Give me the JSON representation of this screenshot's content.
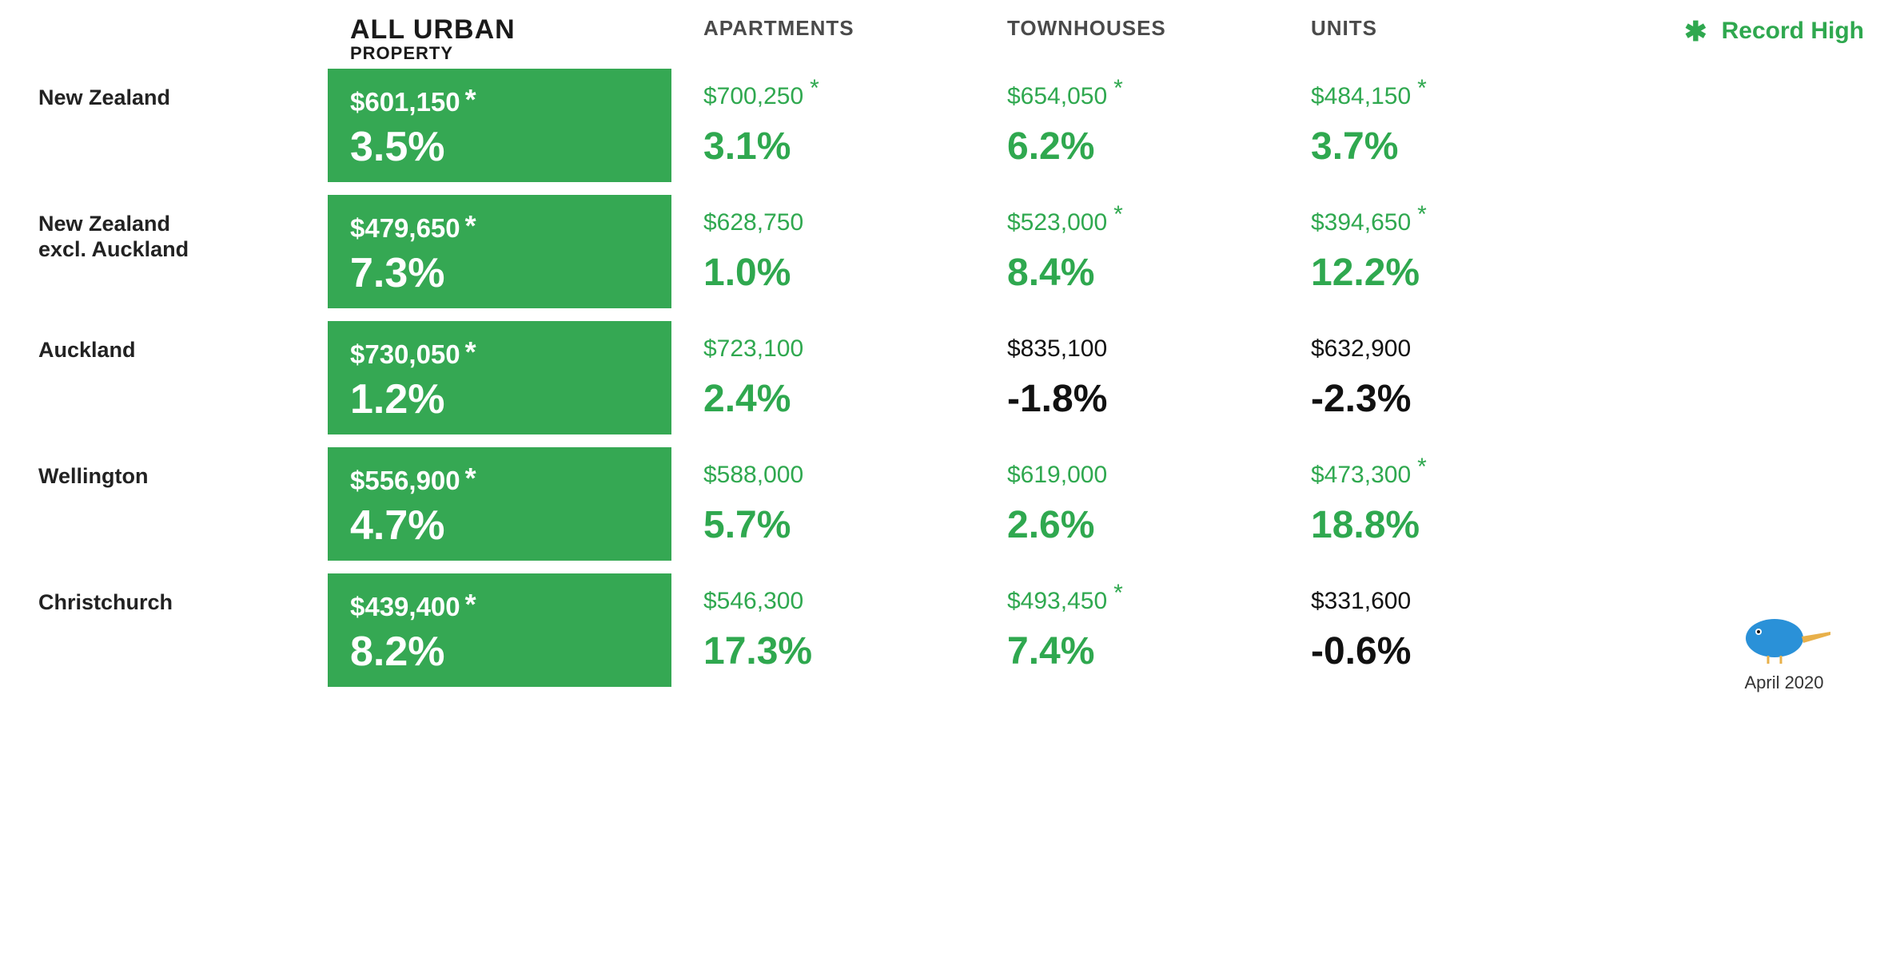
{
  "type": "table-infographic",
  "background_color": "#ffffff",
  "highlight_box_color": "#35a853",
  "positive_color": "#2fa84f",
  "negative_color": "#111111",
  "label_color": "#222222",
  "header_color": "#4a4a4a",
  "price_fontsize": 30,
  "pct_fontsize": 48,
  "box_price_fontsize": 33,
  "box_pct_fontsize": 52,
  "columns": {
    "main_title": "ALL URBAN",
    "main_subtitle": "PROPERTY",
    "c1": "APARTMENTS",
    "c2": "TOWNHOUSES",
    "c3": "UNITS"
  },
  "legend_label": "Record High",
  "legend_star": "✱",
  "footer_label": "April 2020",
  "regions": [
    {
      "label": "New Zealand",
      "main": {
        "price": "$601,150",
        "star": true,
        "pct": "3.5%"
      },
      "cols": [
        {
          "price": "$700,250",
          "star": true,
          "pct": "3.1%",
          "price_class": "green",
          "pct_class": "green"
        },
        {
          "price": "$654,050",
          "star": true,
          "pct": "6.2%",
          "price_class": "green",
          "pct_class": "green"
        },
        {
          "price": "$484,150",
          "star": true,
          "pct": "3.7%",
          "price_class": "green",
          "pct_class": "green"
        }
      ]
    },
    {
      "label": "New Zealand\nexcl. Auckland",
      "main": {
        "price": "$479,650",
        "star": true,
        "pct": "7.3%"
      },
      "cols": [
        {
          "price": "$628,750",
          "star": false,
          "pct": "1.0%",
          "price_class": "green",
          "pct_class": "green"
        },
        {
          "price": "$523,000",
          "star": true,
          "pct": "8.4%",
          "price_class": "green",
          "pct_class": "green"
        },
        {
          "price": "$394,650",
          "star": true,
          "pct": "12.2%",
          "price_class": "green",
          "pct_class": "green"
        }
      ]
    },
    {
      "label": "Auckland",
      "main": {
        "price": "$730,050",
        "star": true,
        "pct": "1.2%"
      },
      "cols": [
        {
          "price": "$723,100",
          "star": false,
          "pct": "2.4%",
          "price_class": "green",
          "pct_class": "green"
        },
        {
          "price": "$835,100",
          "star": false,
          "pct": "-1.8%",
          "price_class": "black",
          "pct_class": "black"
        },
        {
          "price": "$632,900",
          "star": false,
          "pct": "-2.3%",
          "price_class": "black",
          "pct_class": "black"
        }
      ]
    },
    {
      "label": "Wellington",
      "main": {
        "price": "$556,900",
        "star": true,
        "pct": "4.7%"
      },
      "cols": [
        {
          "price": "$588,000",
          "star": false,
          "pct": "5.7%",
          "price_class": "green",
          "pct_class": "green"
        },
        {
          "price": "$619,000",
          "star": false,
          "pct": "2.6%",
          "price_class": "green",
          "pct_class": "green"
        },
        {
          "price": "$473,300",
          "star": true,
          "pct": "18.8%",
          "price_class": "green",
          "pct_class": "green"
        }
      ]
    },
    {
      "label": "Christchurch",
      "main": {
        "price": "$439,400",
        "star": true,
        "pct": "8.2%"
      },
      "cols": [
        {
          "price": "$546,300",
          "star": false,
          "pct": "17.3%",
          "price_class": "green",
          "pct_class": "green"
        },
        {
          "price": "$493,450",
          "star": true,
          "pct": "7.4%",
          "price_class": "green",
          "pct_class": "green"
        },
        {
          "price": "$331,600",
          "star": false,
          "pct": "-0.6%",
          "price_class": "black",
          "pct_class": "black"
        }
      ]
    }
  ]
}
